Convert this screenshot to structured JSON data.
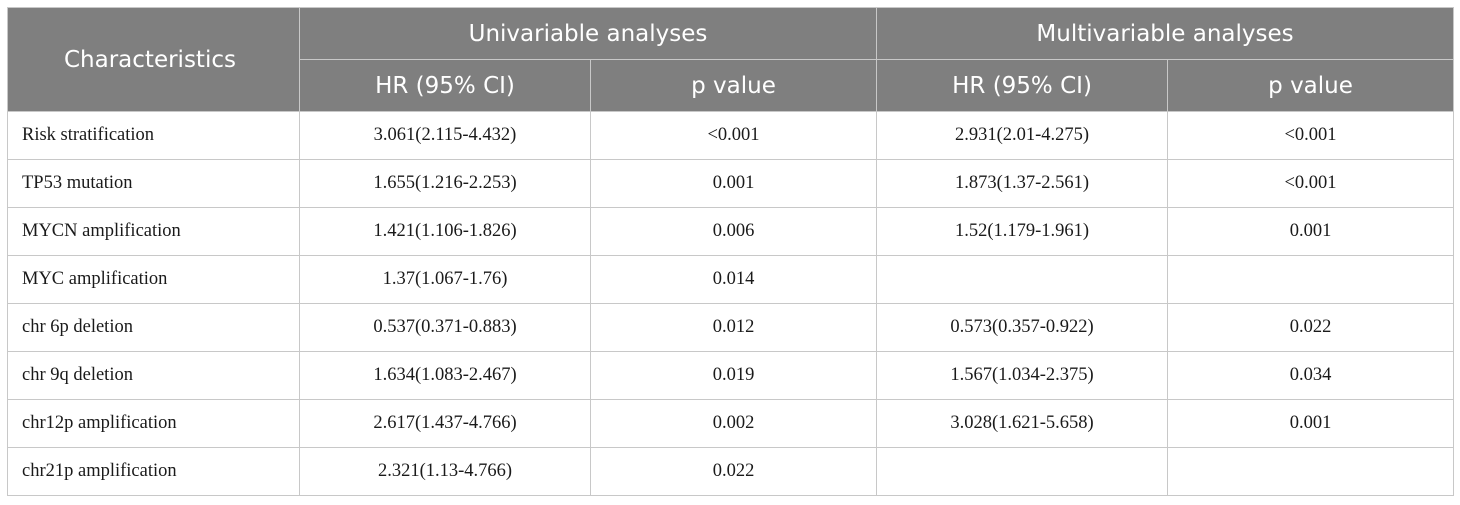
{
  "header": {
    "characteristics": "Characteristics",
    "univariable": "Univariable analyses",
    "multivariable": "Multivariable analyses",
    "uni_hr": "HR (95% CI)",
    "uni_p": "p value",
    "multi_hr": "HR (95% CI)",
    "multi_p": "p value"
  },
  "rows": [
    {
      "characteristic": "Risk stratification",
      "uni_hr": "3.061(2.115-4.432)",
      "uni_p": "<0.001",
      "multi_hr": "2.931(2.01-4.275)",
      "multi_p": "<0.001"
    },
    {
      "characteristic": "TP53 mutation",
      "uni_hr": "1.655(1.216-2.253)",
      "uni_p": "0.001",
      "multi_hr": "1.873(1.37-2.561)",
      "multi_p": "<0.001"
    },
    {
      "characteristic": "MYCN amplification",
      "uni_hr": "1.421(1.106-1.826)",
      "uni_p": "0.006",
      "multi_hr": "1.52(1.179-1.961)",
      "multi_p": "0.001"
    },
    {
      "characteristic": "MYC amplification",
      "uni_hr": "1.37(1.067-1.76)",
      "uni_p": "0.014",
      "multi_hr": "",
      "multi_p": ""
    },
    {
      "characteristic": "chr 6p deletion",
      "uni_hr": "0.537(0.371-0.883)",
      "uni_p": "0.012",
      "multi_hr": "0.573(0.357-0.922)",
      "multi_p": "0.022"
    },
    {
      "characteristic": "chr 9q deletion",
      "uni_hr": "1.634(1.083-2.467)",
      "uni_p": "0.019",
      "multi_hr": "1.567(1.034-2.375)",
      "multi_p": "0.034"
    },
    {
      "characteristic": "chr12p amplification",
      "uni_hr": "2.617(1.437-4.766)",
      "uni_p": "0.002",
      "multi_hr": "3.028(1.621-5.658)",
      "multi_p": "0.001"
    },
    {
      "characteristic": "chr21p amplification",
      "uni_hr": "2.321(1.13-4.766)",
      "uni_p": "0.022",
      "multi_hr": "",
      "multi_p": ""
    }
  ],
  "colors": {
    "header_bg": "#7f7f7f",
    "header_text": "#ffffff",
    "border": "#c8c8c8"
  }
}
